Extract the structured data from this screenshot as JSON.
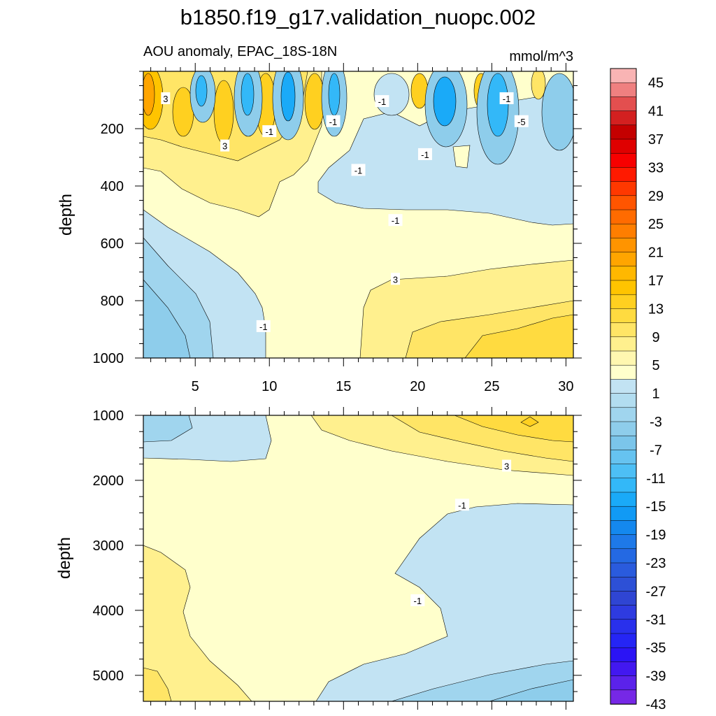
{
  "chart_data": {
    "type": "contour",
    "title": "b1850.f19_g17.validation_nuopc.002",
    "subtitle_left": "AOU anomaly, EPAC_18S-18N",
    "subtitle_right": "mmol/m^3",
    "x": {
      "range": [
        1.5,
        30.5
      ],
      "ticks": [
        5,
        10,
        15,
        20,
        25,
        30
      ],
      "tick_labels": [
        "5",
        "10",
        "15",
        "20",
        "25",
        "30"
      ]
    },
    "panels": [
      {
        "name": "upper",
        "ylabel": "depth",
        "ylim": [
          0,
          1000
        ],
        "inverted": true,
        "yticks": [
          200,
          400,
          600,
          800,
          1000
        ],
        "ytick_labels": [
          "200",
          "400",
          "600",
          "800",
          "1000"
        ]
      },
      {
        "name": "lower",
        "ylabel": "depth",
        "ylim": [
          1000,
          5400
        ],
        "inverted": true,
        "yticks": [
          1000,
          2000,
          3000,
          4000,
          5000
        ],
        "ytick_labels": [
          "1000",
          "2000",
          "3000",
          "4000",
          "5000"
        ]
      }
    ],
    "contour_labels": [
      {
        "panel": 0,
        "x": 3.0,
        "y": 95,
        "text": "3"
      },
      {
        "panel": 0,
        "x": 17.6,
        "y": 105,
        "text": "-1"
      },
      {
        "panel": 0,
        "x": 26.0,
        "y": 95,
        "text": "-1"
      },
      {
        "panel": 0,
        "x": 27.0,
        "y": 175,
        "text": "-5"
      },
      {
        "panel": 0,
        "x": 14.3,
        "y": 175,
        "text": "-1"
      },
      {
        "panel": 0,
        "x": 10.0,
        "y": 210,
        "text": "-1"
      },
      {
        "panel": 0,
        "x": 7.0,
        "y": 260,
        "text": "3"
      },
      {
        "panel": 0,
        "x": 20.5,
        "y": 290,
        "text": "-1"
      },
      {
        "panel": 0,
        "x": 16.0,
        "y": 345,
        "text": "-1"
      },
      {
        "panel": 0,
        "x": 18.5,
        "y": 520,
        "text": "-1"
      },
      {
        "panel": 0,
        "x": 18.5,
        "y": 725,
        "text": "3"
      },
      {
        "panel": 0,
        "x": 9.6,
        "y": 890,
        "text": "-1"
      },
      {
        "panel": 1,
        "x": 26.0,
        "y": 1780,
        "text": "3"
      },
      {
        "panel": 1,
        "x": 23.0,
        "y": 2380,
        "text": "-1"
      },
      {
        "panel": 1,
        "x": 20.0,
        "y": 3850,
        "text": "-1"
      }
    ],
    "colorbar": {
      "tick_labels": [
        "45",
        "41",
        "37",
        "33",
        "29",
        "25",
        "21",
        "17",
        "13",
        "9",
        "5",
        "1",
        "-3",
        "-7",
        "-11",
        "-15",
        "-19",
        "-23",
        "-27",
        "-31",
        "-35",
        "-39",
        "-43"
      ],
      "colors": [
        "#f9b4b4",
        "#ef8080",
        "#e34f4f",
        "#d32020",
        "#c40000",
        "#df0000",
        "#f70000",
        "#ff1a00",
        "#ff3800",
        "#ff5500",
        "#ff6b00",
        "#ff7e00",
        "#ff9400",
        "#ffa500",
        "#ffb800",
        "#ffc400",
        "#ffd020",
        "#ffdb40",
        "#ffe566",
        "#fff08e",
        "#fff7b0",
        "#ffffcc",
        "#c2e3f3",
        "#b2ddf0",
        "#a0d5ee",
        "#8ecdeb",
        "#7bc5ea",
        "#66c3f0",
        "#4dbff5",
        "#33b8f8",
        "#1aaaf8",
        "#119af5",
        "#1488ee",
        "#1e79e8",
        "#2469e3",
        "#2a5bdd",
        "#2d50d6",
        "#2f45d3",
        "#2e3be0",
        "#2930ec",
        "#2525f5",
        "#2b14f5",
        "#4218f0",
        "#5b22ea",
        "#7628e6"
      ]
    }
  }
}
